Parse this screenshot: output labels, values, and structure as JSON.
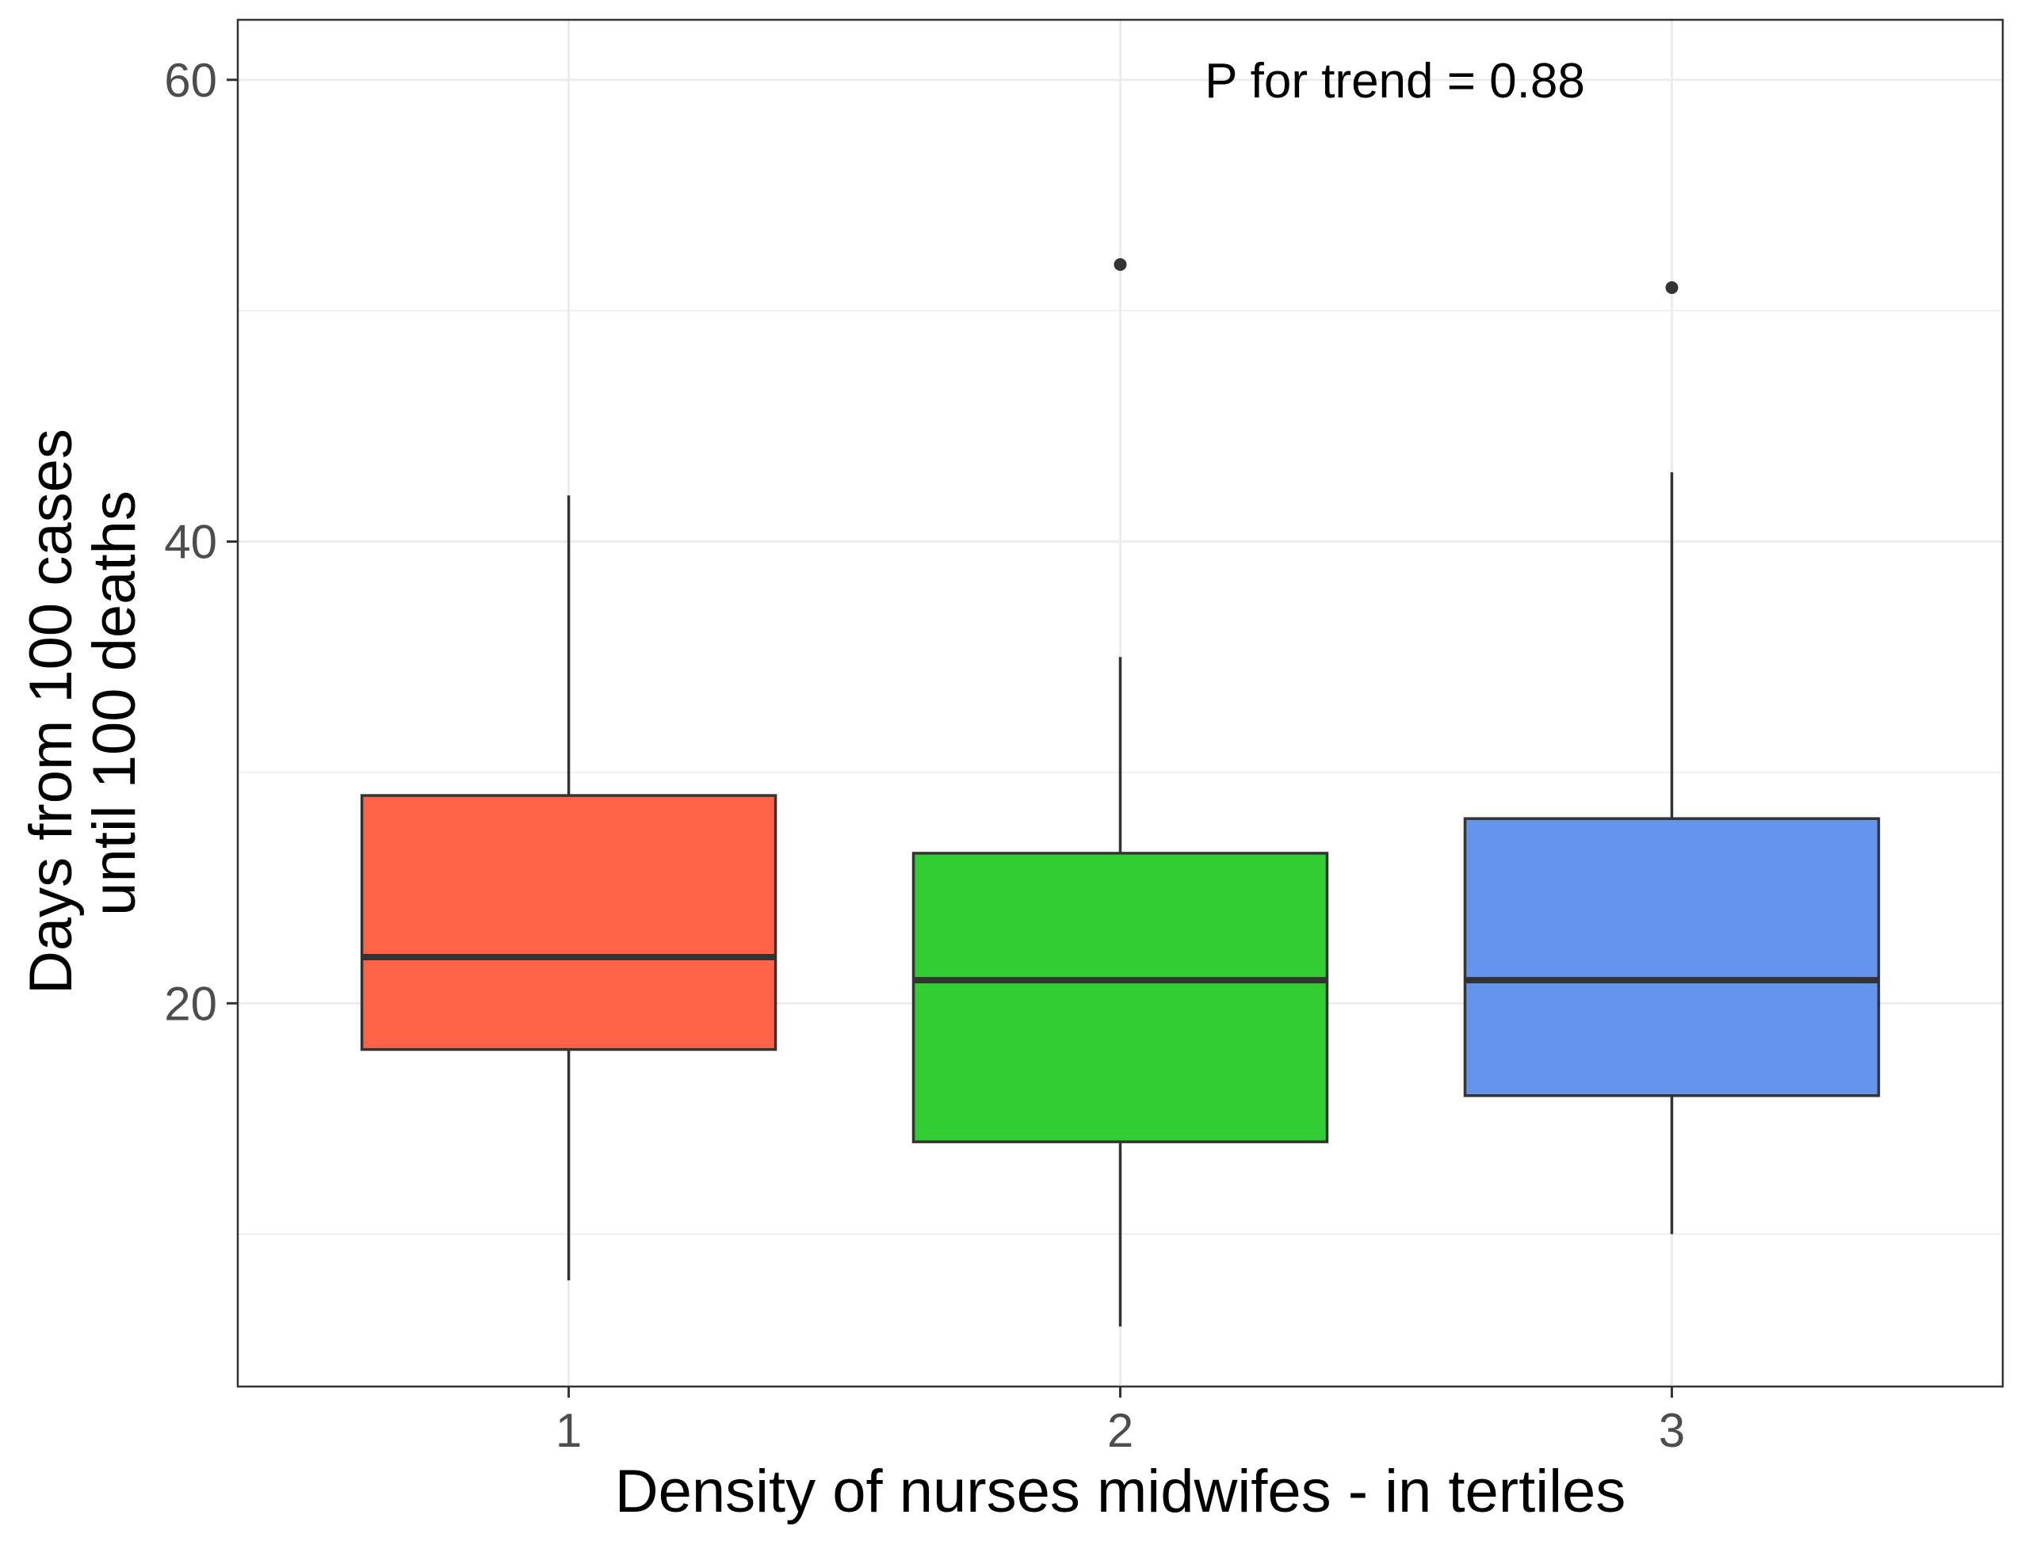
{
  "chart_data": {
    "type": "boxplot",
    "title": "",
    "xlabel": "Density of nurses midwifes - in tertiles",
    "ylabel_lines": [
      "Days from 100 cases",
      "until 100 deaths"
    ],
    "categories": [
      "1",
      "2",
      "3"
    ],
    "y_ticks": [
      "20",
      "40",
      "60"
    ],
    "ylim": [
      3.4,
      62.6
    ],
    "y_minor_ticks": [
      10,
      30,
      50
    ],
    "grid": true,
    "annotation": "P for trend = 0.88",
    "boxes": [
      {
        "category": "1",
        "whisker_low": 8,
        "q1": 18,
        "median": 22,
        "q3": 29,
        "whisker_high": 42,
        "outliers": [],
        "color": "#FF6347"
      },
      {
        "category": "2",
        "whisker_low": 6,
        "q1": 14,
        "median": 21,
        "q3": 26.5,
        "whisker_high": 35,
        "outliers": [
          52
        ],
        "color": "#32CD32"
      },
      {
        "category": "3",
        "whisker_low": 10,
        "q1": 16,
        "median": 21,
        "q3": 28,
        "whisker_high": 43,
        "outliers": [
          51
        ],
        "color": "#6495ED"
      }
    ],
    "colors": {
      "grid": "#ebebeb",
      "panel_border": "#333333",
      "box_outline": "#333333",
      "tick_text": "#4d4d4d"
    }
  }
}
